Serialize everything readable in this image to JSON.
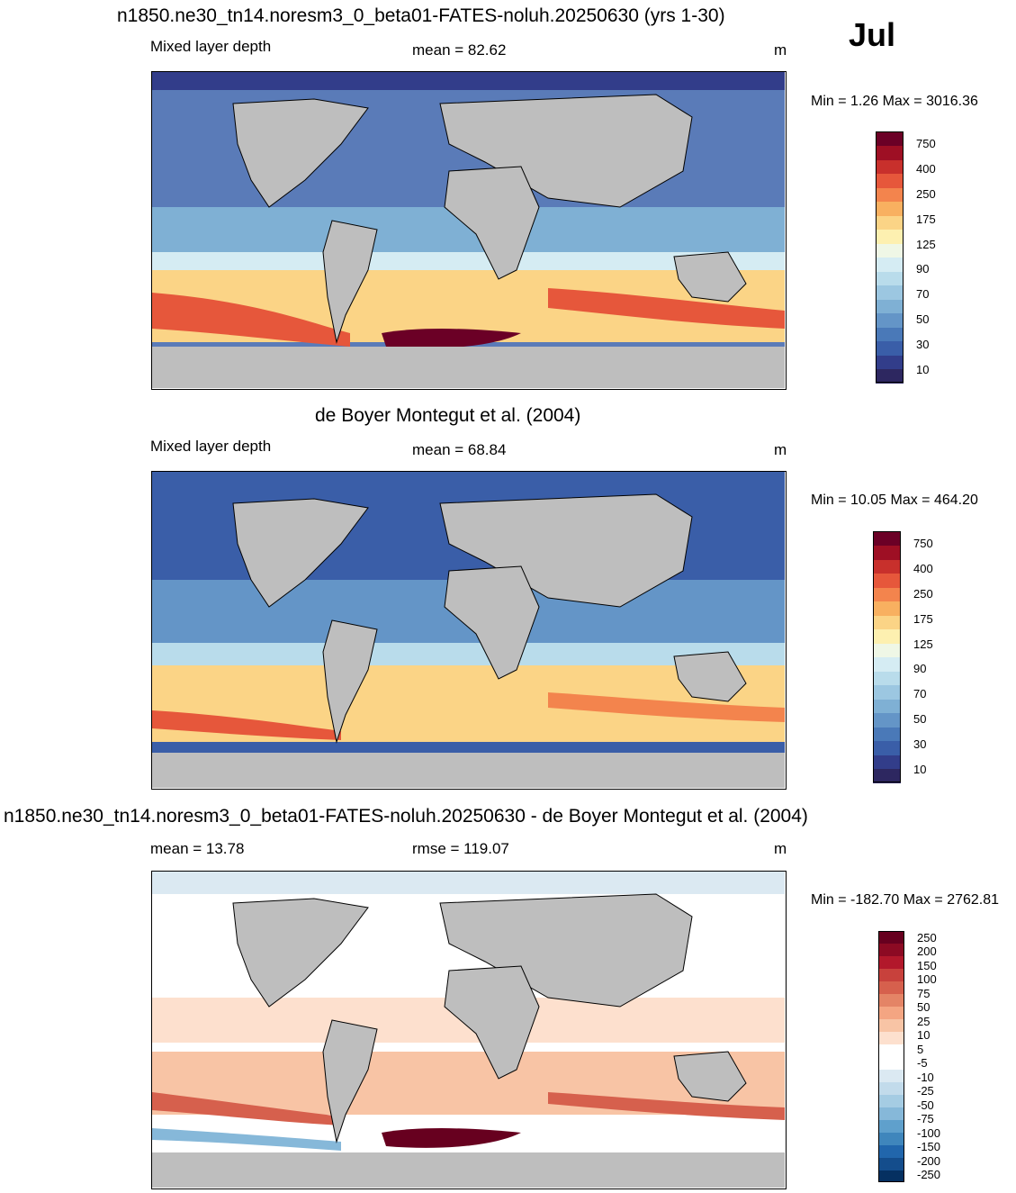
{
  "month": "Jul",
  "land_color": "#bebebe",
  "panels": [
    {
      "title": "n1850.ne30_tn14.noresm3_0_beta01-FATES-noluh.20250630 (yrs 1-30)",
      "left_label": "Mixed layer depth",
      "center_label": "mean =  82.62",
      "units": "m",
      "minmax": "Min =    1.26 Max = 3016.36",
      "ocean_base": "#5a7bb8",
      "colorbar": {
        "labels": [
          "750",
          "400",
          "250",
          "175",
          "125",
          "90",
          "70",
          "50",
          "30",
          "10"
        ],
        "colors": [
          "#6b0026",
          "#9e0f24",
          "#c8302c",
          "#e6573b",
          "#f3844d",
          "#f8b060",
          "#fbd486",
          "#fdf0b0",
          "#eff7e6",
          "#d5ecf3",
          "#b9dceb",
          "#9cc7e1",
          "#7fb0d4",
          "#6495c7",
          "#4a79b8",
          "#3a5ea8",
          "#323d8a",
          "#2d2760"
        ]
      }
    },
    {
      "title": "de Boyer Montegut et al. (2004)",
      "left_label": "Mixed layer depth",
      "center_label": "mean =  68.84",
      "units": "m",
      "minmax": "Min =  10.05 Max = 464.20",
      "ocean_base": "#5d80bd",
      "colorbar": {
        "labels": [
          "750",
          "400",
          "250",
          "175",
          "125",
          "90",
          "70",
          "50",
          "30",
          "10"
        ],
        "colors": [
          "#6b0026",
          "#9e0f24",
          "#c8302c",
          "#e6573b",
          "#f3844d",
          "#f8b060",
          "#fbd486",
          "#fdf0b0",
          "#eff7e6",
          "#d5ecf3",
          "#b9dceb",
          "#9cc7e1",
          "#7fb0d4",
          "#6495c7",
          "#4a79b8",
          "#3a5ea8",
          "#323d8a",
          "#2d2760"
        ]
      }
    },
    {
      "title": "n1850.ne30_tn14.noresm3_0_beta01-FATES-noluh.20250630 - de Boyer Montegut et al. (2004)",
      "left_label": "mean =  13.78",
      "center_label": "rmse = 119.07",
      "units": "m",
      "minmax": "Min = -182.70 Max = 2762.81",
      "ocean_base": "#ffffff",
      "colorbar": {
        "labels": [
          "250",
          "200",
          "150",
          "100",
          "75",
          "50",
          "25",
          "10",
          "5",
          "-5",
          "-10",
          "-25",
          "-50",
          "-75",
          "-100",
          "-150",
          "-200",
          "-250"
        ],
        "colors": [
          "#67001f",
          "#8c0a23",
          "#b2182b",
          "#c8413c",
          "#d6604d",
          "#e48466",
          "#f4a582",
          "#f8c4a5",
          "#fde0ce",
          "#ffffff",
          "#ffffff",
          "#dbe9f2",
          "#c2dbeb",
          "#a5cce3",
          "#86b8d9",
          "#5fa0cc",
          "#3f86bc",
          "#2166ac",
          "#144d8c",
          "#053061"
        ]
      }
    }
  ]
}
